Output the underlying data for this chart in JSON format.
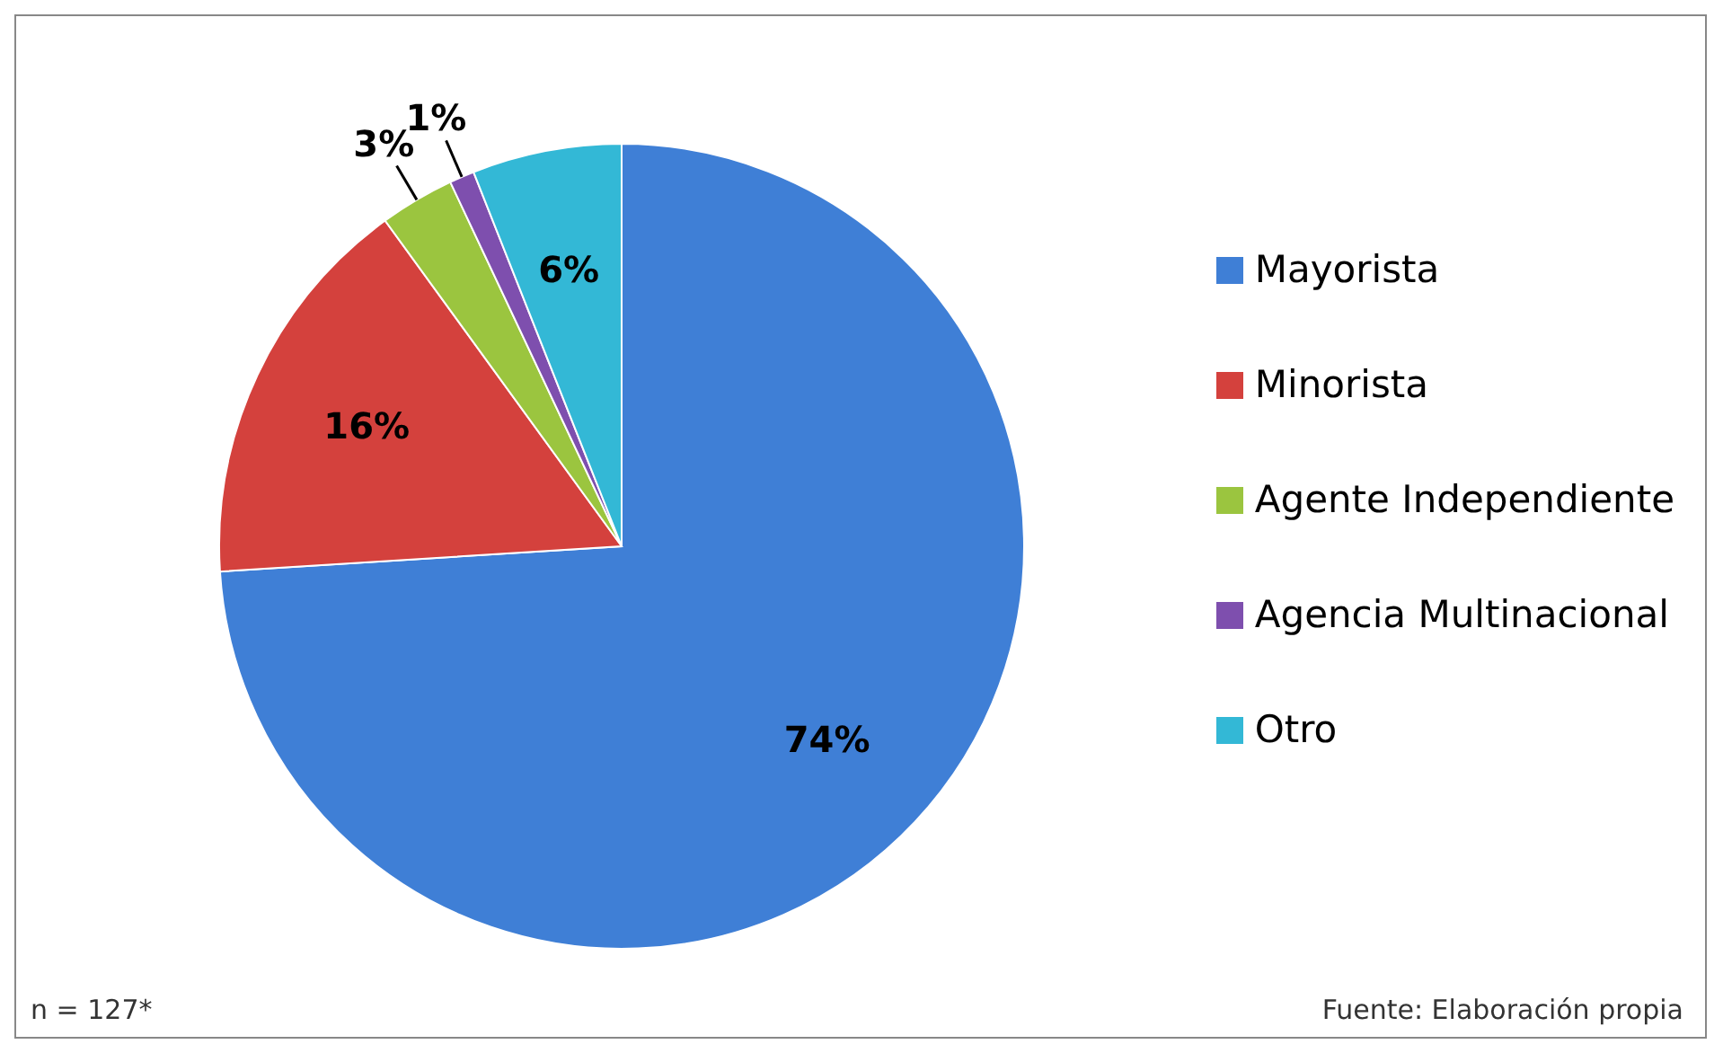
{
  "chart_data": {
    "type": "pie",
    "categories": [
      "Mayorista",
      "Minorista",
      "Agente Independiente",
      "Agencia Multinacional",
      "Otro"
    ],
    "values": [
      74,
      16,
      3,
      1,
      6
    ],
    "colors": [
      "#3f7fd6",
      "#d4413d",
      "#9bc53f",
      "#7e4fae",
      "#33b8d6"
    ],
    "value_labels": [
      "74%",
      "16%",
      "3%",
      "1%",
      "6%"
    ],
    "legend": "right",
    "annotations": [
      "n = 127*",
      "Fuente: Elaboración propia"
    ]
  }
}
